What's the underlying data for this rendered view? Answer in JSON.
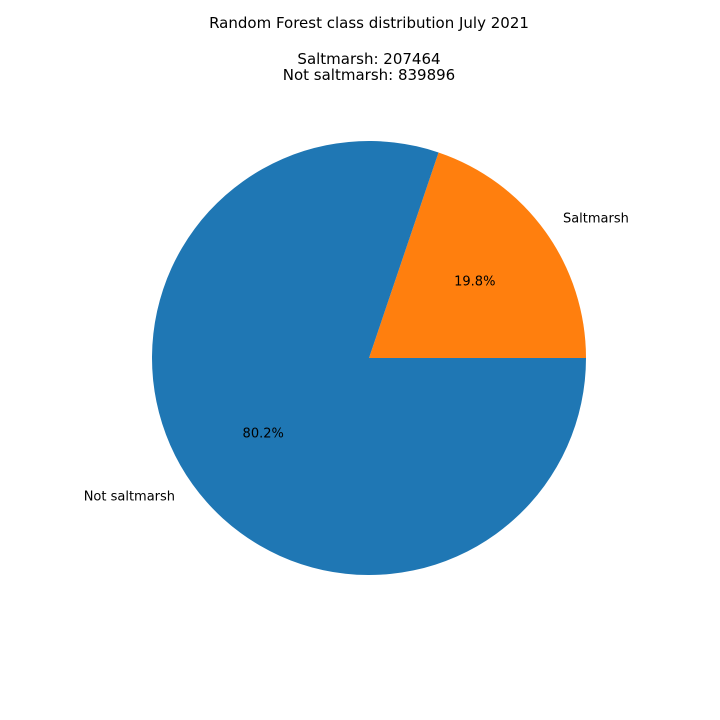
{
  "chart_data": {
    "type": "pie",
    "title": "Random Forest class distribution July 2021",
    "subtitle_lines": [
      "Saltmarsh: 207464",
      "Not saltmarsh: 839896"
    ],
    "start_angle_deg": 0,
    "direction": "counterclockwise",
    "slices": [
      {
        "label": "Saltmarsh",
        "value": 207464,
        "pct_label": "19.8%",
        "color": "#ff7f0e"
      },
      {
        "label": "Not saltmarsh",
        "value": 839896,
        "pct_label": "80.2%",
        "color": "#1f77b4"
      }
    ]
  }
}
